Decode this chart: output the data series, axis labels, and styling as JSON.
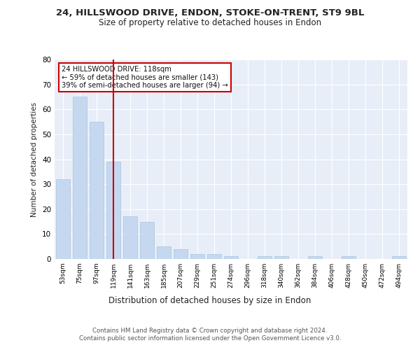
{
  "title1": "24, HILLSWOOD DRIVE, ENDON, STOKE-ON-TRENT, ST9 9BL",
  "title2": "Size of property relative to detached houses in Endon",
  "xlabel": "Distribution of detached houses by size in Endon",
  "ylabel": "Number of detached properties",
  "categories": [
    "53sqm",
    "75sqm",
    "97sqm",
    "119sqm",
    "141sqm",
    "163sqm",
    "185sqm",
    "207sqm",
    "229sqm",
    "251sqm",
    "274sqm",
    "296sqm",
    "318sqm",
    "340sqm",
    "362sqm",
    "384sqm",
    "406sqm",
    "428sqm",
    "450sqm",
    "472sqm",
    "494sqm"
  ],
  "values": [
    32,
    65,
    55,
    39,
    17,
    15,
    5,
    4,
    2,
    2,
    1,
    0,
    1,
    1,
    0,
    1,
    0,
    1,
    0,
    0,
    1
  ],
  "bar_color": "#c5d8f0",
  "bar_edge_color": "#a8c4e0",
  "vline_x": 3,
  "vline_color": "#cc0000",
  "annotation_text": "24 HILLSWOOD DRIVE: 118sqm\n← 59% of detached houses are smaller (143)\n39% of semi-detached houses are larger (94) →",
  "annotation_box_color": "#cc0000",
  "ylim": [
    0,
    80
  ],
  "yticks": [
    0,
    10,
    20,
    30,
    40,
    50,
    60,
    70,
    80
  ],
  "footer": "Contains HM Land Registry data © Crown copyright and database right 2024.\nContains public sector information licensed under the Open Government Licence v3.0.",
  "bg_color": "#ffffff",
  "plot_bg_color": "#e8eef8"
}
